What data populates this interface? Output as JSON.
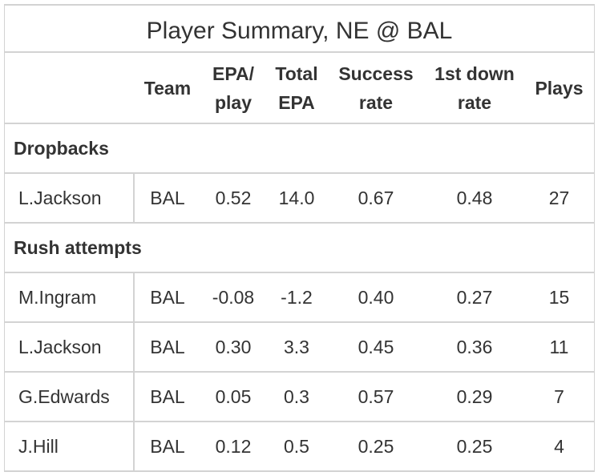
{
  "title": "Player Summary, NE @ BAL",
  "columns": {
    "team": "Team",
    "epa_play_1": "EPA/",
    "epa_play_2": "play",
    "total_epa_1": "Total",
    "total_epa_2": "EPA",
    "success_1": "Success",
    "success_2": "rate",
    "first_down_1": "1st down",
    "first_down_2": "rate",
    "plays": "Plays"
  },
  "groups": [
    {
      "label": "Dropbacks",
      "rows": [
        {
          "player": "L.Jackson",
          "team": "BAL",
          "epa_play": "0.52",
          "total_epa": "14.0",
          "success_rate": "0.67",
          "first_down_rate": "0.48",
          "plays": "27"
        }
      ]
    },
    {
      "label": "Rush attempts",
      "rows": [
        {
          "player": "M.Ingram",
          "team": "BAL",
          "epa_play": "-0.08",
          "total_epa": "-1.2",
          "success_rate": "0.40",
          "first_down_rate": "0.27",
          "plays": "15"
        },
        {
          "player": "L.Jackson",
          "team": "BAL",
          "epa_play": "0.30",
          "total_epa": "3.3",
          "success_rate": "0.45",
          "first_down_rate": "0.36",
          "plays": "11"
        },
        {
          "player": "G.Edwards",
          "team": "BAL",
          "epa_play": "0.05",
          "total_epa": "0.3",
          "success_rate": "0.57",
          "first_down_rate": "0.29",
          "plays": "7"
        },
        {
          "player": "J.Hill",
          "team": "BAL",
          "epa_play": "0.12",
          "total_epa": "0.5",
          "success_rate": "0.25",
          "first_down_rate": "0.25",
          "plays": "4"
        }
      ]
    }
  ],
  "colors": {
    "text": "#333333",
    "border": "#d3d3d3",
    "background": "#ffffff"
  }
}
